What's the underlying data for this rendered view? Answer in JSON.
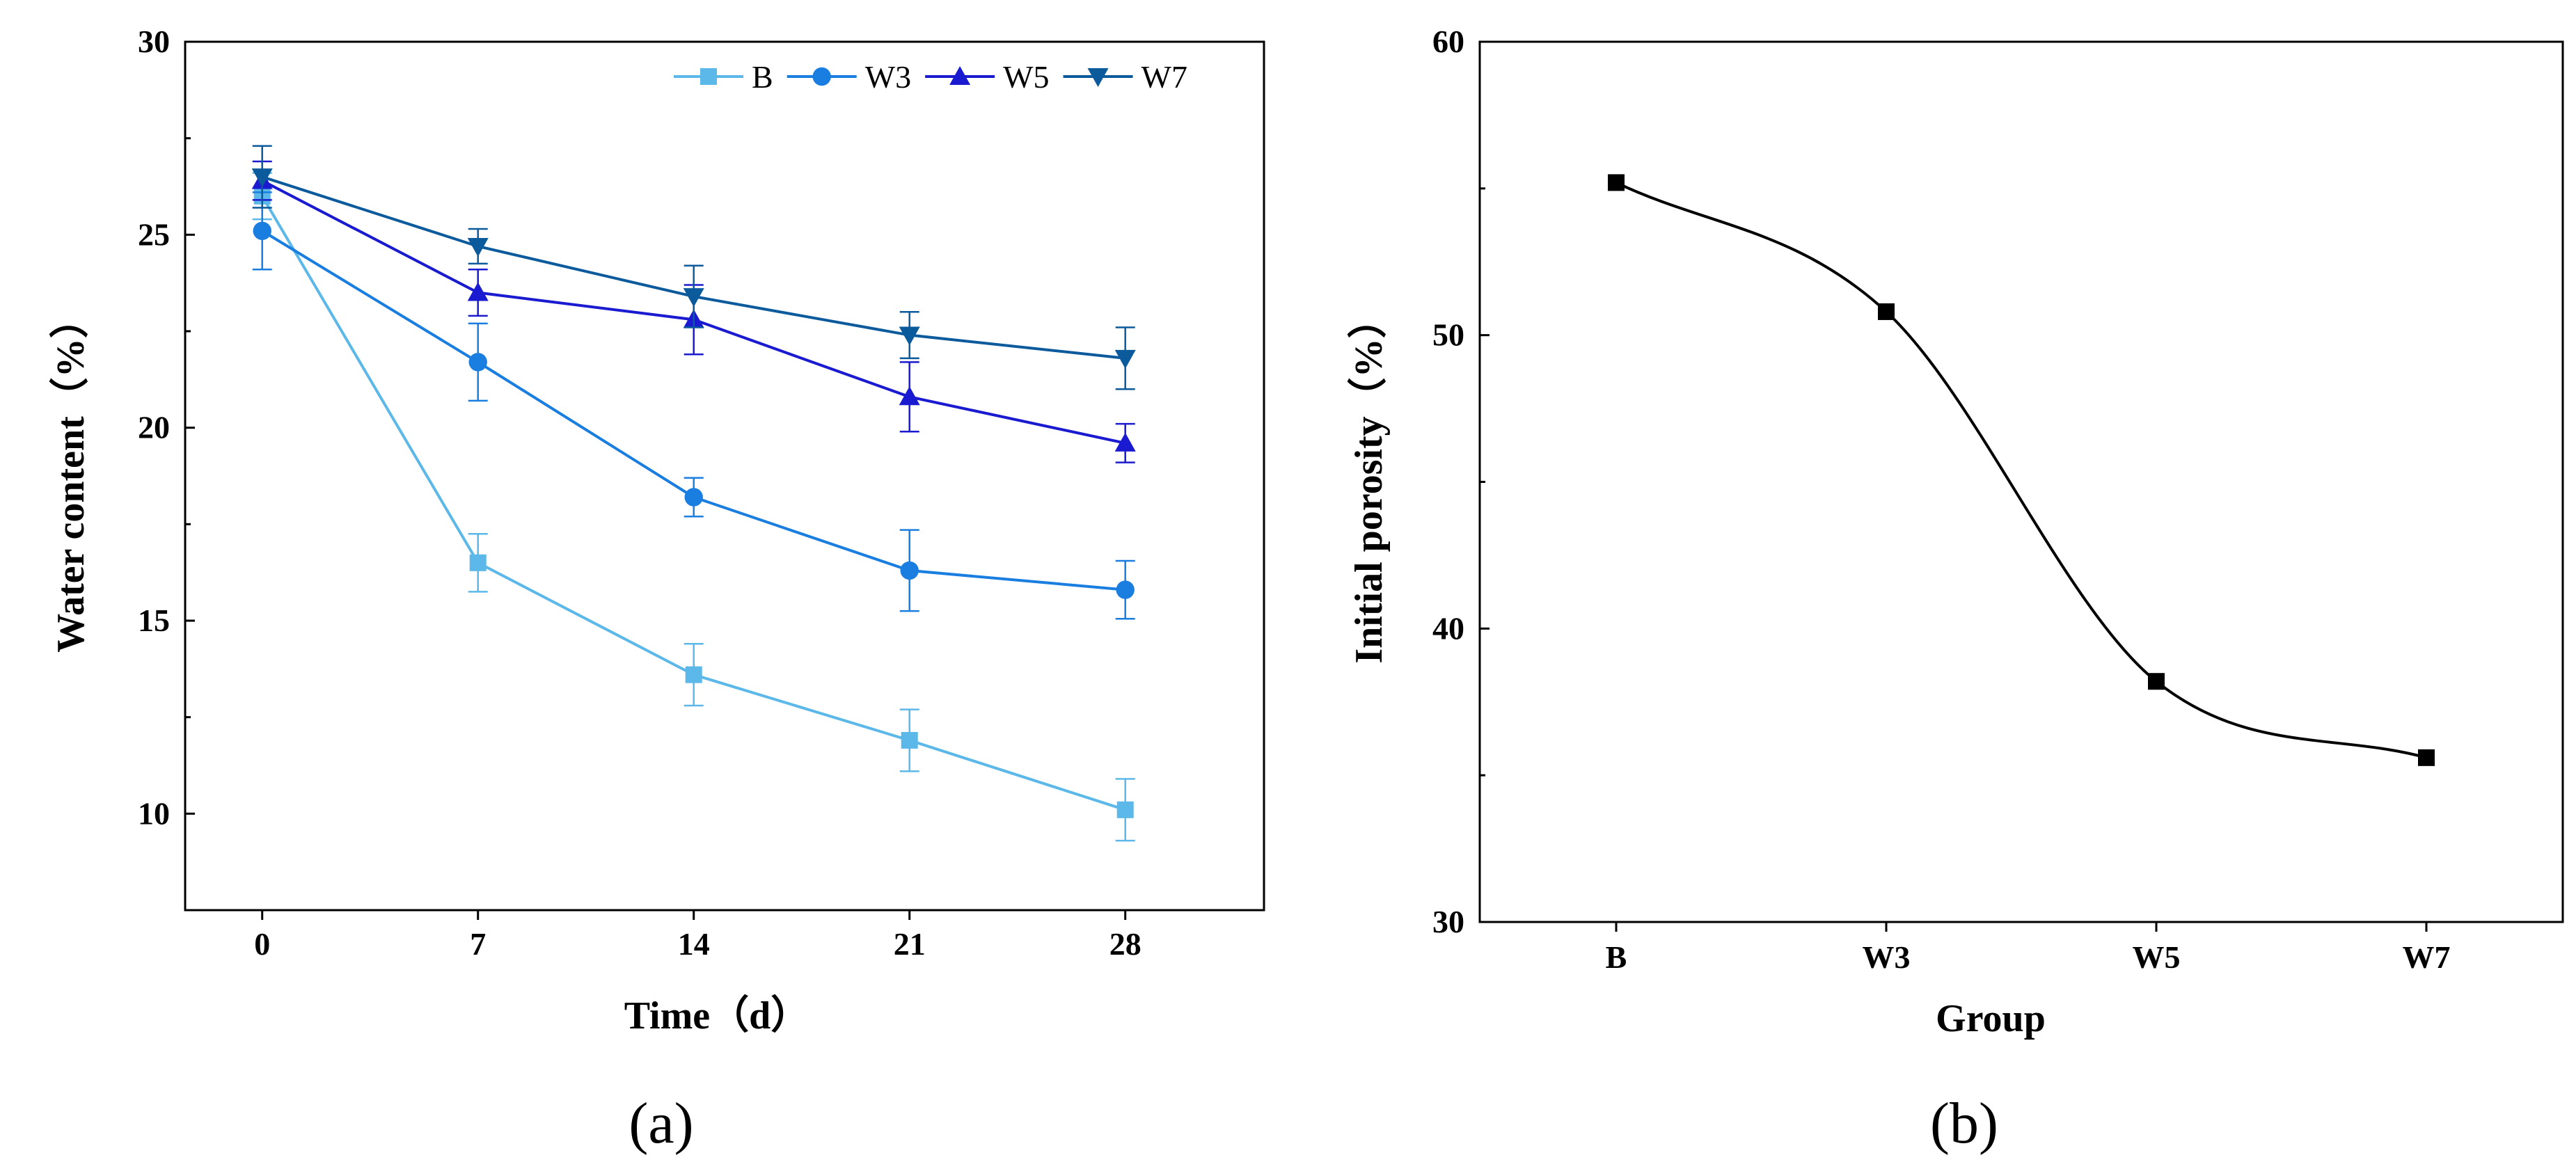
{
  "chart_data": [
    {
      "panel": "(a)",
      "type": "line",
      "xlabel": "Time（d）",
      "ylabel": "Water content（%）",
      "x": [
        0,
        7,
        14,
        21,
        28
      ],
      "x_tick_labels": [
        "0",
        "7",
        "14",
        "21",
        "28"
      ],
      "xlim": [
        -2.5,
        32.5
      ],
      "ylim": [
        7.5,
        30
      ],
      "y_ticks": [
        10,
        15,
        20,
        25,
        30
      ],
      "y_tick_labels": [
        "10",
        "15",
        "20",
        "25",
        "30"
      ],
      "legend": "top-right",
      "error_bars": true,
      "series": [
        {
          "name": "B",
          "marker": "square",
          "color": "#5cb8e8",
          "values": [
            26.0,
            16.5,
            13.6,
            11.9,
            10.1
          ],
          "errors": [
            0.6,
            0.75,
            0.8,
            0.8,
            0.8
          ]
        },
        {
          "name": "W3",
          "marker": "circle",
          "color": "#1a7ee0",
          "values": [
            25.1,
            21.7,
            18.2,
            16.3,
            15.8
          ],
          "errors": [
            1.0,
            1.0,
            0.5,
            1.05,
            0.75
          ]
        },
        {
          "name": "W5",
          "marker": "triangle-up",
          "color": "#1a1ad0",
          "values": [
            26.4,
            23.5,
            22.8,
            20.8,
            19.6
          ],
          "errors": [
            0.5,
            0.6,
            0.9,
            0.9,
            0.5
          ]
        },
        {
          "name": "W7",
          "marker": "triangle-down",
          "color": "#0b5a9c",
          "values": [
            26.5,
            24.7,
            23.4,
            22.4,
            21.8
          ],
          "errors": [
            0.8,
            0.45,
            0.8,
            0.6,
            0.8
          ]
        }
      ]
    },
    {
      "panel": "(b)",
      "type": "line",
      "xlabel": "Group",
      "ylabel": "Initial porosity（%）",
      "categories": [
        "B",
        "W3",
        "W5",
        "W7"
      ],
      "ylim": [
        30,
        60
      ],
      "y_ticks": [
        30,
        40,
        50,
        60
      ],
      "y_tick_labels": [
        "30",
        "40",
        "50",
        "60"
      ],
      "smooth": true,
      "series": [
        {
          "name": "Initial porosity",
          "marker": "square",
          "color": "#000000",
          "values": [
            55.2,
            50.8,
            38.2,
            35.6
          ]
        }
      ]
    }
  ]
}
